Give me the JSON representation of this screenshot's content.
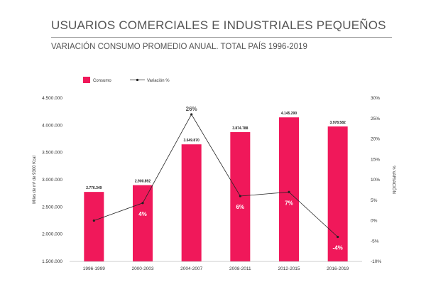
{
  "header": {
    "title": "USUARIOS COMERCIALES E INDUSTRIALES PEQUEÑOS",
    "subtitle": "VARIACIÓN CONSUMO PROMEDIO ANUAL. TOTAL PAÍS 1996-2019"
  },
  "chart_data": {
    "type": "bar",
    "categories": [
      "1996-1999",
      "2000-2003",
      "2004-2007",
      "2008-2011",
      "2012-2015",
      "2016-2019"
    ],
    "series": [
      {
        "name": "Consumo",
        "type": "bar",
        "axis": "left",
        "values": [
          2776349,
          2900892,
          3649870,
          3874788,
          4145290,
          3978582
        ],
        "labels": [
          "2.776.349",
          "2.900.892",
          "3.649.870",
          "3.874.788",
          "4.145.290",
          "3.978.582"
        ],
        "color": "#f0185a"
      },
      {
        "name": "Variación %",
        "type": "line",
        "axis": "right",
        "values": [
          0,
          4.3,
          26,
          6,
          7,
          -4
        ],
        "labels": [
          "",
          "4%",
          "26%",
          "6%",
          "7%",
          "-4%"
        ],
        "color": "#222222"
      }
    ],
    "ylabel": "Miles de m³ de 9300 Kcal",
    "y2label": "% VARIACIÓN",
    "ylim": [
      1500000,
      4500000
    ],
    "y2lim": [
      -10,
      30
    ],
    "yticks": [
      "1.500.000",
      "2.000.000",
      "2.500.000",
      "3.000.000",
      "3.500.000",
      "4.000.000",
      "4.500.000"
    ],
    "y2ticks": [
      "-10%",
      "-5%",
      "0%",
      "5%",
      "10%",
      "15%",
      "20%",
      "25%",
      "30%"
    ],
    "grid": false,
    "legend": "top-left"
  }
}
